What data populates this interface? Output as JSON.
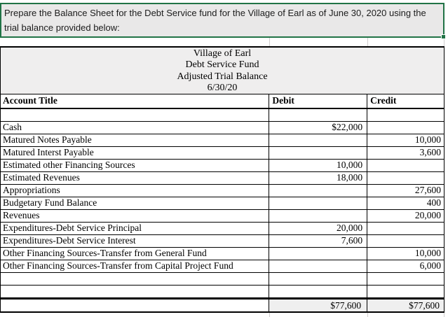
{
  "instruction": {
    "text": "Prepare the Balance Sheet for the Debt Service fund for the Village of Earl as of June 30, 2020 using the trial balance provided below:"
  },
  "table": {
    "title_lines": [
      "Village of Earl",
      "Debt Service Fund",
      "Adjusted Trial Balance",
      "6/30/20"
    ],
    "columns": {
      "account": "Account Title",
      "debit": "Debit",
      "credit": "Credit"
    },
    "rows": [
      {
        "account": "",
        "debit": "",
        "credit": ""
      },
      {
        "account": "Cash",
        "debit": "$22,000",
        "credit": ""
      },
      {
        "account": "Matured Notes Payable",
        "debit": "",
        "credit": "10,000"
      },
      {
        "account": "Matured Interst Payable",
        "debit": "",
        "credit": "3,600"
      },
      {
        "account": "Estimated other Financing Sources",
        "debit": "10,000",
        "credit": ""
      },
      {
        "account": "Estimated Revenues",
        "debit": "18,000",
        "credit": ""
      },
      {
        "account": "Appropriations",
        "debit": "",
        "credit": "27,600"
      },
      {
        "account": "Budgetary Fund Balance",
        "debit": "",
        "credit": "400"
      },
      {
        "account": "Revenues",
        "debit": "",
        "credit": "20,000"
      },
      {
        "account": "Expenditures-Debt Service Principal",
        "debit": "20,000",
        "credit": ""
      },
      {
        "account": "Expenditures-Debt Service Interest",
        "debit": "7,600",
        "credit": ""
      },
      {
        "account": "Other Financing Sources-Transfer from General Fund",
        "debit": "",
        "credit": "10,000"
      },
      {
        "account": "Other Financing Sources-Transfer from Capital Project Fund",
        "debit": "",
        "credit": "6,000"
      },
      {
        "account": "",
        "debit": "",
        "credit": ""
      },
      {
        "account": "",
        "debit": "",
        "credit": ""
      }
    ],
    "totals": {
      "account": "",
      "debit": "$77,600",
      "credit": "$77,600"
    }
  },
  "colors": {
    "selection_green": "#217346",
    "instruction_fill": "#e9e8e8",
    "title_fill": "#efeeee",
    "totals_fill": "#efefef",
    "border": "#000000",
    "gridline": "#d0cece"
  }
}
